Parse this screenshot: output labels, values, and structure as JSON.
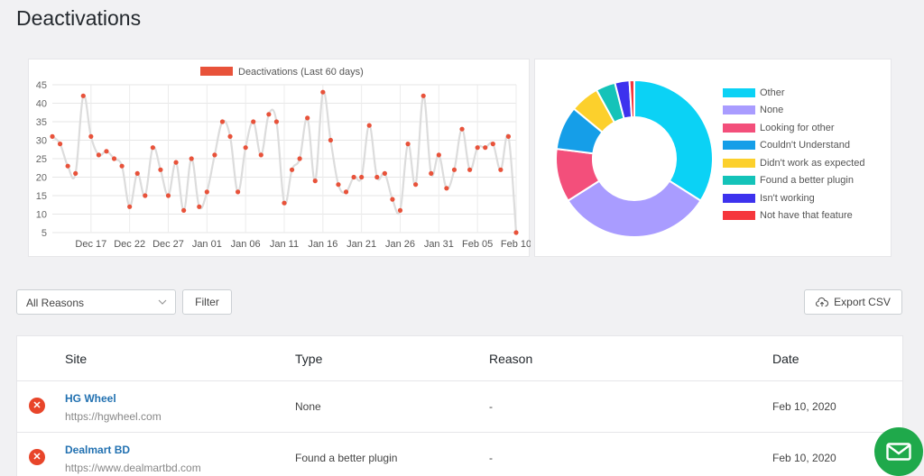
{
  "page": {
    "title": "Deactivations"
  },
  "chart_data": [
    {
      "type": "line",
      "legend": "Deactivations (Last 60 days)",
      "legend_placement": "top",
      "color": "#e8523a",
      "grid": true,
      "ylim": [
        5,
        45
      ],
      "yticks": [
        5,
        10,
        15,
        20,
        25,
        30,
        35,
        40,
        45
      ],
      "xtick_labels": [
        "Dec 17",
        "Dec 22",
        "Dec 27",
        "Jan 01",
        "Jan 06",
        "Jan 11",
        "Jan 16",
        "Jan 21",
        "Jan 26",
        "Jan 31",
        "Feb 05",
        "Feb 10"
      ],
      "values": [
        31,
        29,
        23,
        21,
        42,
        31,
        26,
        27,
        25,
        23,
        12,
        21,
        15,
        28,
        22,
        15,
        24,
        11,
        25,
        12,
        16,
        26,
        35,
        31,
        16,
        28,
        35,
        26,
        37,
        35,
        13,
        22,
        25,
        36,
        19,
        43,
        30,
        18,
        16,
        20,
        20,
        34,
        20,
        21,
        14,
        11,
        29,
        18,
        42,
        21,
        26,
        17,
        22,
        33,
        22,
        28,
        28,
        29,
        22,
        31,
        5
      ]
    },
    {
      "type": "pie",
      "legend_placement": "right",
      "categories": [
        "Other",
        "None",
        "Looking for other",
        "Couldn't Understand",
        "Didn't work as expected",
        "Found a better plugin",
        "Isn't working",
        "Not have that feature"
      ],
      "values": [
        34,
        32,
        11,
        9,
        6,
        4,
        3,
        1
      ],
      "colors": [
        "#0bd2f5",
        "#a99cff",
        "#f34f7b",
        "#159ee8",
        "#fcd02c",
        "#14c3b9",
        "#3d32ee",
        "#f5363c"
      ]
    }
  ],
  "controls": {
    "reason_select": "All Reasons",
    "filter_label": "Filter",
    "export_label": "Export CSV"
  },
  "table": {
    "columns": [
      "Site",
      "Type",
      "Reason",
      "Date"
    ],
    "rows": [
      {
        "name": "HG Wheel",
        "url": "https://hgwheel.com",
        "type": "None",
        "reason": "-",
        "date": "Feb 10, 2020"
      },
      {
        "name": "Dealmart BD",
        "url": "https://www.dealmartbd.com",
        "type": "Found a better plugin",
        "reason": "-",
        "date": "Feb 10, 2020"
      }
    ]
  },
  "icons": {
    "row_status": "close-icon",
    "chat": "mail-icon",
    "export": "cloud-upload-icon",
    "select": "chevron-down-icon"
  }
}
